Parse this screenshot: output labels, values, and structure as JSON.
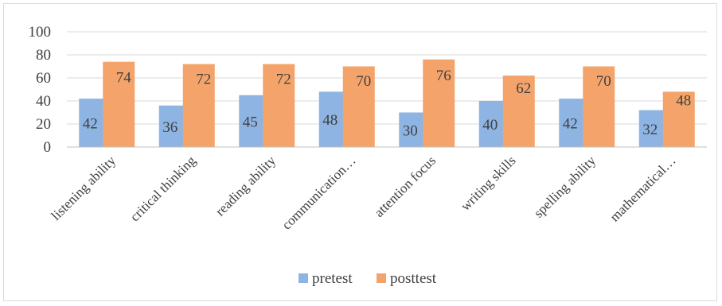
{
  "chart_data": {
    "type": "bar",
    "categories": [
      "listening ability",
      "critical thinking",
      "reading ability",
      "communication…",
      "attention focus",
      "writing skills",
      "spelling ability",
      "mathematical…"
    ],
    "series": [
      {
        "name": "pretest",
        "color": "#8db4e2",
        "values": [
          42,
          36,
          45,
          48,
          30,
          40,
          42,
          32
        ]
      },
      {
        "name": "posttest",
        "color": "#f4a46a",
        "values": [
          74,
          72,
          72,
          70,
          76,
          62,
          70,
          48
        ]
      }
    ],
    "yticks": [
      "0",
      "20",
      "40",
      "60",
      "80",
      "100"
    ],
    "ylim": [
      0,
      100
    ],
    "grid": true,
    "legend_position": "bottom"
  }
}
